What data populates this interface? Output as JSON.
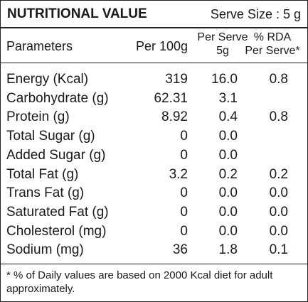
{
  "header": {
    "title": "NUTRITIONAL VALUE",
    "serve_size": "Serve Size : 5 g"
  },
  "table": {
    "columns": [
      [
        "Parameters"
      ],
      [
        "Per 100g"
      ],
      [
        "Per Serve",
        "5g"
      ],
      [
        "% RDA",
        "Per Serve*"
      ]
    ],
    "rows": [
      [
        "Energy (Kcal)",
        "319",
        "16.0",
        "0.8"
      ],
      [
        "Carbohydrate (g)",
        "62.31",
        "3.1",
        null
      ],
      [
        "Protein (g)",
        "8.92",
        "0.4",
        "0.8"
      ],
      [
        "Total Sugar (g)",
        "0",
        "0.0",
        null
      ],
      [
        "Added Sugar (g)",
        "0",
        "0.0",
        null
      ],
      [
        "Total Fat (g)",
        "3.2",
        "0.2",
        "0.2"
      ],
      [
        "Trans Fat (g)",
        "0",
        "0.0",
        "0.0"
      ],
      [
        "Saturated Fat (g)",
        "0",
        "0.0",
        "0.0"
      ],
      [
        "Cholesterol (mg)",
        "0",
        "0.0",
        "0.0"
      ],
      [
        "Sodium (mg)",
        "36",
        "1.8",
        "0.1"
      ]
    ]
  },
  "footnote": [
    "* % of Daily values are based on 2000 Kcal diet for adult",
    "approximately."
  ]
}
